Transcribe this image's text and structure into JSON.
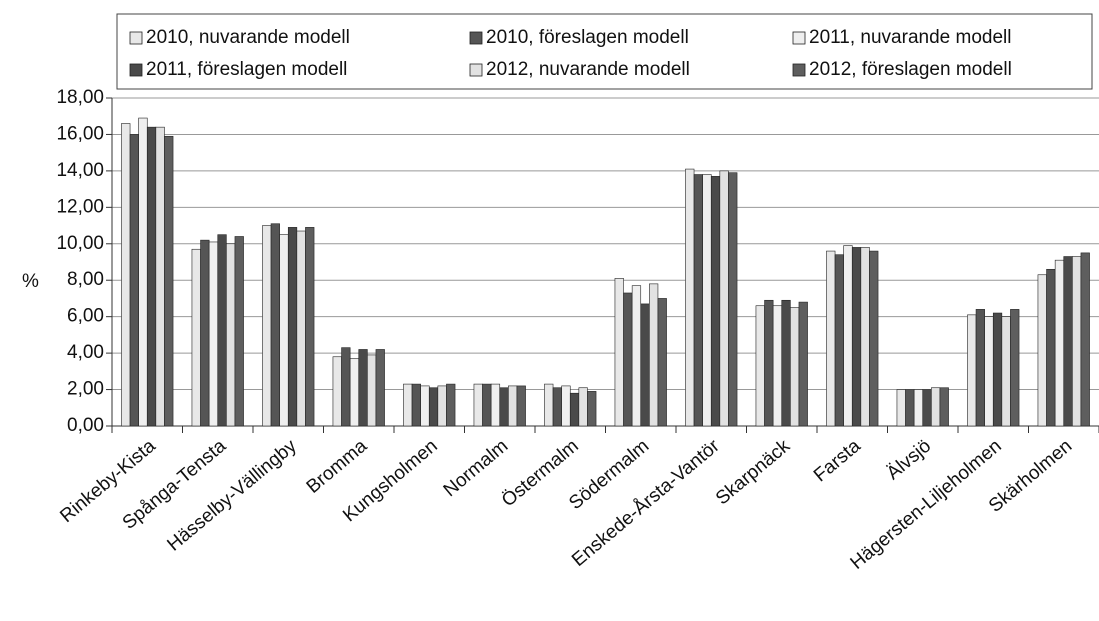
{
  "chart_data": {
    "type": "bar",
    "ylabel": "%",
    "categories": [
      "Rinkeby-Kista",
      "Spånga-Tensta",
      "Hässelby-Vällingby",
      "Bromma",
      "Kungsholmen",
      "Normalm",
      "Östermalm",
      "Södermalm",
      "Enskede-Årsta-Vantör",
      "Skarpnäck",
      "Farsta",
      "Älvsjö",
      "Hägersten-Liljeholmen",
      "Skärholmen"
    ],
    "series": [
      {
        "name": "2010, nuvarande modell",
        "color": "#e8e8e8",
        "values": [
          16.6,
          9.7,
          11.0,
          3.8,
          2.3,
          2.3,
          2.3,
          8.1,
          14.1,
          6.6,
          9.6,
          2.0,
          6.1,
          8.3
        ]
      },
      {
        "name": "2010, föreslagen modell",
        "color": "#555555",
        "values": [
          16.0,
          10.2,
          11.1,
          4.3,
          2.3,
          2.3,
          2.1,
          7.3,
          13.8,
          6.9,
          9.4,
          2.0,
          6.4,
          8.6
        ]
      },
      {
        "name": "2011, nuvarande modell",
        "color": "#efefef",
        "values": [
          16.9,
          10.1,
          10.5,
          3.7,
          2.2,
          2.3,
          2.2,
          7.7,
          13.8,
          6.6,
          9.9,
          2.0,
          6.0,
          9.1
        ]
      },
      {
        "name": "2011, föreslagen modell",
        "color": "#4a4a4a",
        "values": [
          16.4,
          10.5,
          10.9,
          4.2,
          2.1,
          2.1,
          1.8,
          6.7,
          13.7,
          6.9,
          9.8,
          2.0,
          6.2,
          9.3
        ]
      },
      {
        "name": "2012, nuvarande modell",
        "color": "#e2e2e2",
        "values": [
          16.4,
          10.0,
          10.7,
          3.9,
          2.2,
          2.2,
          2.1,
          7.8,
          14.0,
          6.5,
          9.8,
          2.1,
          6.0,
          9.3
        ]
      },
      {
        "name": "2012, föreslagen modell",
        "color": "#5e5e5e",
        "values": [
          15.9,
          10.4,
          10.9,
          4.2,
          2.3,
          2.2,
          1.9,
          7.0,
          13.9,
          6.8,
          9.6,
          2.1,
          6.4,
          9.5
        ]
      }
    ],
    "ylim": [
      0,
      18
    ],
    "yticks": [
      {
        "value": 0,
        "label": "0,00"
      },
      {
        "value": 2,
        "label": "2,00"
      },
      {
        "value": 4,
        "label": "4,00"
      },
      {
        "value": 6,
        "label": "6,00"
      },
      {
        "value": 8,
        "label": "8,00"
      },
      {
        "value": 10,
        "label": "10,00"
      },
      {
        "value": 12,
        "label": "12,00"
      },
      {
        "value": 14,
        "label": "14,00"
      },
      {
        "value": 16,
        "label": "16,00"
      },
      {
        "value": 18,
        "label": "18,00"
      }
    ],
    "grid": true
  }
}
